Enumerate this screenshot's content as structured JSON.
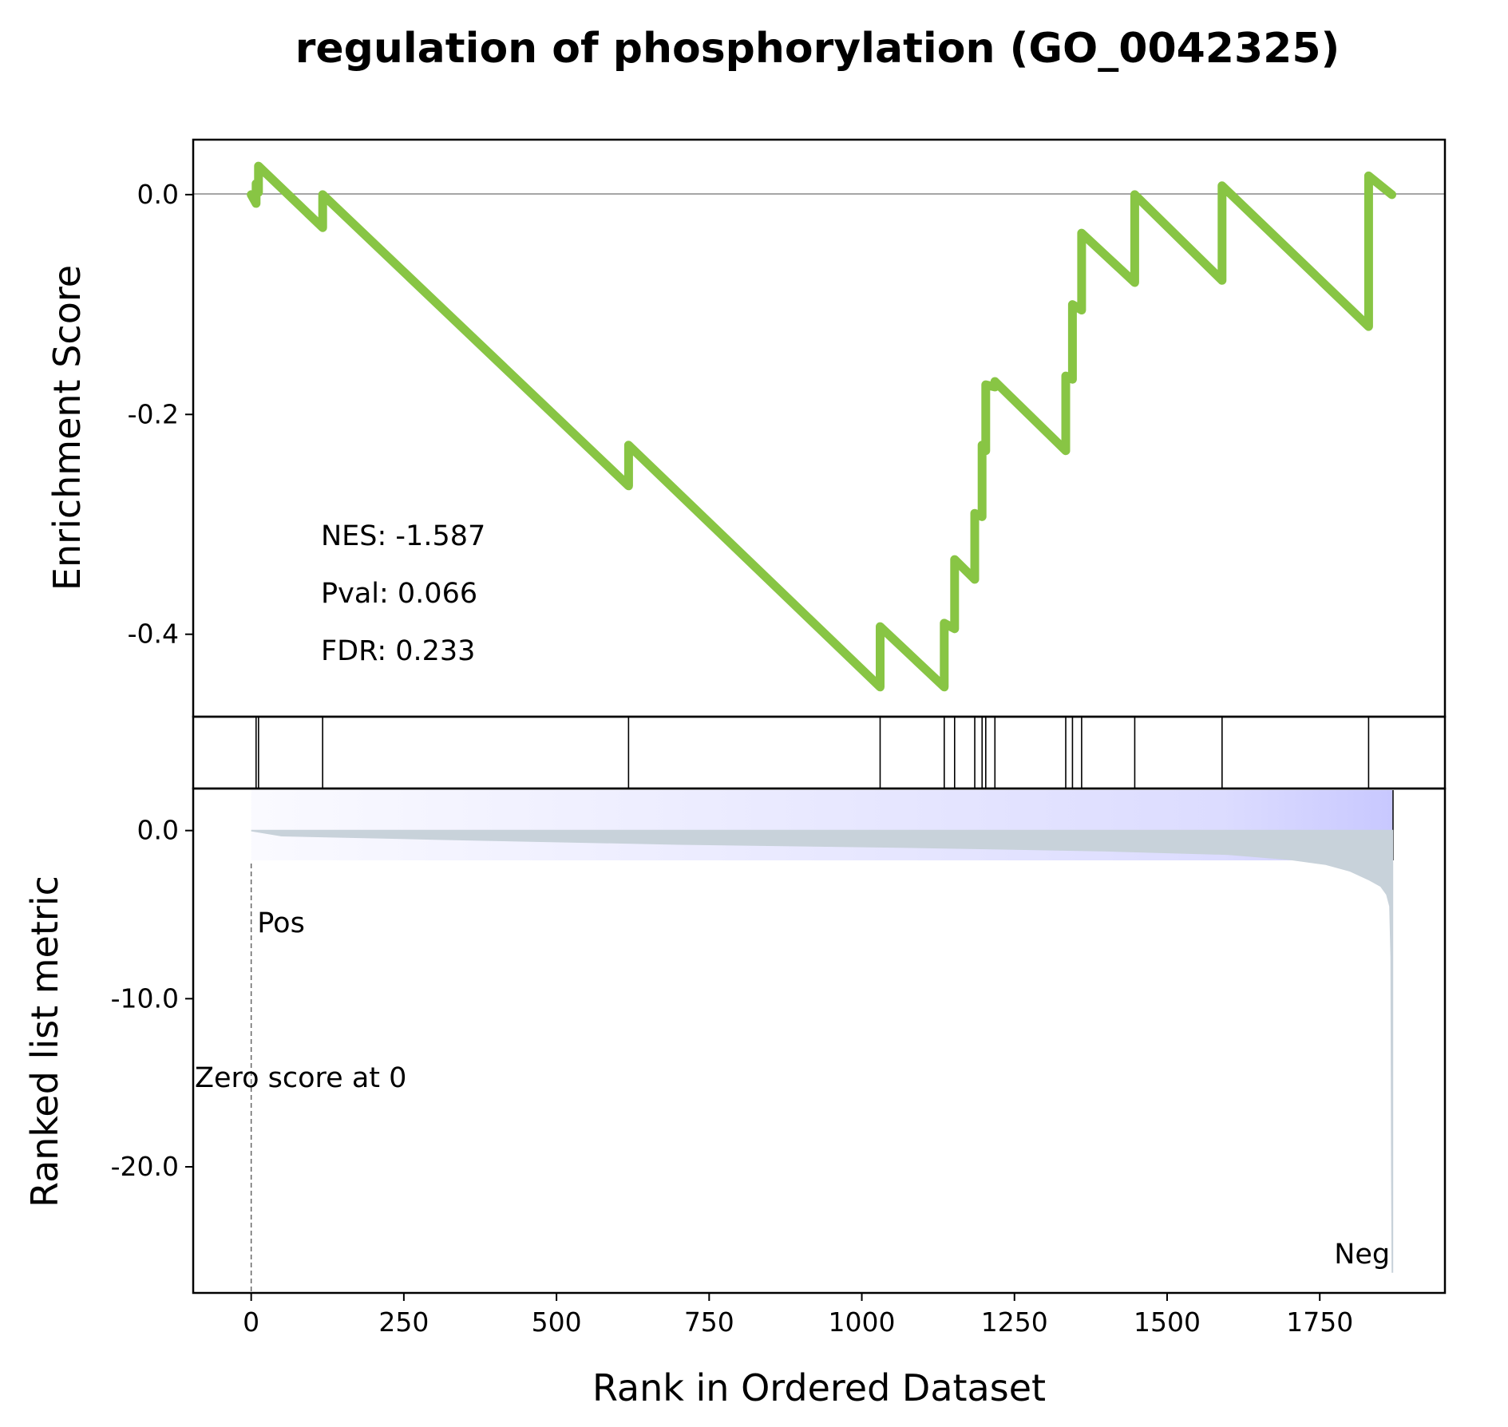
{
  "chart_data": {
    "type": "line",
    "title": "regulation of phosphorylation (GO_0042325)",
    "xlabel": "Rank in Ordered Dataset",
    "xlim": [
      -95,
      1955
    ],
    "x_ticks": [
      0,
      250,
      500,
      750,
      1000,
      1250,
      1500,
      1750
    ],
    "n_genes": 1870,
    "enrichment_panel": {
      "ylabel": "Enrichment Score",
      "ylim": [
        -0.475,
        0.05
      ],
      "y_ticks": [
        0.0,
        -0.2,
        -0.4
      ],
      "y_tick_labels": [
        "0.0",
        "-0.2",
        "-0.4"
      ],
      "color": "#88c544",
      "series": [
        {
          "x": [
            0,
            8,
            8,
            12,
            12,
            117,
            117,
            618,
            618,
            1030,
            1030,
            1135,
            1135,
            1152,
            1152,
            1185,
            1185,
            1197,
            1197,
            1203,
            1203,
            1218,
            1218,
            1334,
            1334,
            1345,
            1345,
            1360,
            1360,
            1447,
            1447,
            1590,
            1590,
            1830,
            1830,
            1868
          ],
          "y": [
            0.0,
            -0.008,
            0.01,
            0.002,
            0.026,
            -0.03,
            0.0,
            -0.265,
            -0.228,
            -0.448,
            -0.393,
            -0.448,
            -0.39,
            -0.395,
            -0.332,
            -0.35,
            -0.29,
            -0.293,
            -0.228,
            -0.233,
            -0.173,
            -0.175,
            -0.17,
            -0.233,
            -0.165,
            -0.168,
            -0.1,
            -0.105,
            -0.035,
            -0.08,
            0.0,
            -0.078,
            0.008,
            -0.12,
            0.017,
            0.0
          ]
        }
      ],
      "annotations": [
        "NES: -1.587",
        "Pval: 0.066",
        "FDR: 0.233"
      ]
    },
    "hits_panel": {
      "positions": [
        8,
        12,
        117,
        618,
        1030,
        1135,
        1152,
        1185,
        1197,
        1203,
        1218,
        1334,
        1345,
        1360,
        1447,
        1590,
        1830
      ]
    },
    "heatmap_bar": {
      "from_color": "#fafaff",
      "to_color": "#c8c8ff"
    },
    "ranked_panel": {
      "ylabel": "Ranked list metric",
      "ylim": [
        -27.5,
        2.5
      ],
      "y_ticks": [
        0,
        -10,
        -20
      ],
      "y_tick_labels": [
        "0.0",
        "-10.0",
        "-20.0"
      ],
      "fill_color": "#c8d2da",
      "series": [
        {
          "x": [
            0,
            50,
            300,
            700,
            1100,
            1400,
            1600,
            1700,
            1760,
            1800,
            1830,
            1850,
            1860,
            1865,
            1867,
            1868,
            1869
          ],
          "y": [
            0.0,
            -0.3,
            -0.5,
            -0.8,
            -1.0,
            -1.2,
            -1.4,
            -1.7,
            -2.0,
            -2.4,
            -2.9,
            -3.3,
            -3.8,
            -4.5,
            -7.5,
            -20.0,
            -26.3
          ]
        }
      ],
      "zero_line_x": 0,
      "annotations": {
        "pos": "Pos",
        "neg": "Neg",
        "zero": "Zero score at 0",
        "pos_color": "#ff0000",
        "neg_color": "#0000ff"
      }
    }
  }
}
